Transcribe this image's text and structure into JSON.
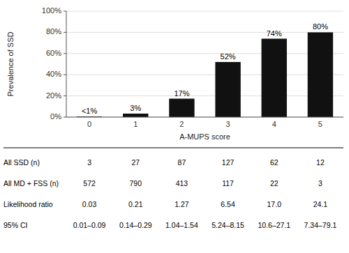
{
  "chart_data": {
    "type": "bar",
    "categories": [
      "0",
      "1",
      "2",
      "3",
      "4",
      "5"
    ],
    "values": [
      0.52,
      3.3,
      17.4,
      52.0,
      74.0,
      80.0
    ],
    "value_labels": [
      "<1%",
      "3%",
      "17%",
      "52%",
      "74%",
      "80%"
    ],
    "data_labels": true,
    "color": "#111111",
    "xlabel": "A-MUPS score",
    "ylabel": "Prevalence of SSD",
    "ylim": [
      0,
      100
    ],
    "yticks": [
      {
        "value": 0,
        "label": "0%"
      },
      {
        "value": 20,
        "label": "20%"
      },
      {
        "value": 40,
        "label": "40%"
      },
      {
        "value": 60,
        "label": "60%"
      },
      {
        "value": 80,
        "label": "80%"
      },
      {
        "value": 100,
        "label": "100%"
      }
    ],
    "grid": true,
    "table": [
      [
        "All SSD (n)",
        "3",
        "27",
        "87",
        "127",
        "62",
        "12"
      ],
      [
        "All MD + FSS (n)",
        "572",
        "790",
        "413",
        "117",
        "22",
        "3"
      ],
      [
        "Likelihood ratio",
        "0.03",
        "0.21",
        "1.27",
        "6.54",
        "17.0",
        "24.1"
      ],
      [
        "95% CI",
        "0.01–0.09",
        "0.14–0.29",
        "1.04–1.54",
        "5.24–8.15",
        "10.6–27.1",
        "7.34–79.1"
      ]
    ]
  }
}
